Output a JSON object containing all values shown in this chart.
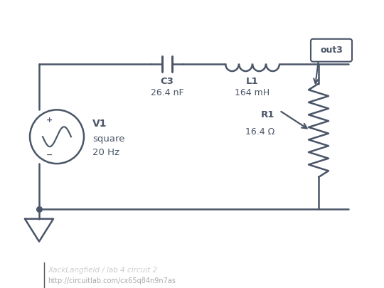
{
  "bg_color": "#ffffff",
  "component_color": "#4a5568",
  "lw": 1.8,
  "footer_bg": "#1c1c1c",
  "circuit_name": "XackLangfield / lab 4 circuit 2",
  "circuit_url": "http://circuitlab.com/cx65q84n9n7as",
  "v1_label": "V1",
  "v1_sub1": "square",
  "v1_sub2": "20 Hz",
  "c3_label": "C3",
  "c3_value": "26.4 nF",
  "l1_label": "L1",
  "l1_value": "164 mH",
  "r1_label": "R1",
  "r1_value": "16.4 Ω",
  "out3_label": "out3"
}
